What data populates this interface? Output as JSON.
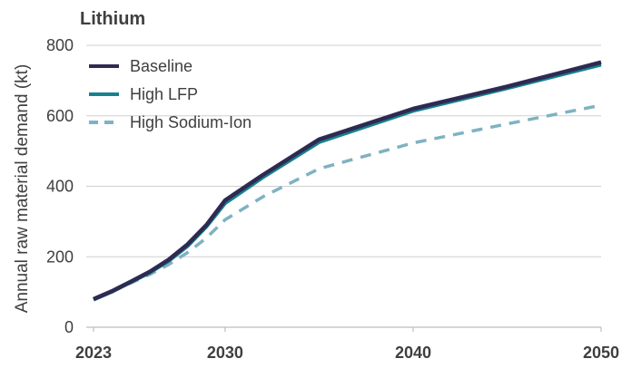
{
  "chart_data": {
    "type": "line",
    "title": "Lithium",
    "xlabel": "",
    "ylabel": "Annual raw material demand (kt)",
    "xlim": [
      2023,
      2050
    ],
    "ylim": [
      0,
      800
    ],
    "x_ticks": [
      "2023",
      "2030",
      "2040",
      "2050"
    ],
    "x_tick_values": [
      2023,
      2030,
      2040,
      2050
    ],
    "y_ticks": [
      "0",
      "200",
      "400",
      "600",
      "800"
    ],
    "y_tick_values": [
      0,
      200,
      400,
      600,
      800
    ],
    "grid": "horizontal",
    "legend_position": "top-left",
    "x": [
      2023,
      2024,
      2025,
      2026,
      2027,
      2028,
      2029,
      2030,
      2032,
      2035,
      2040,
      2045,
      2050
    ],
    "series": [
      {
        "name": "Baseline",
        "color": "#2e2a52",
        "style": "solid",
        "values": [
          80,
          103,
          130,
          158,
          192,
          235,
          290,
          360,
          432,
          533,
          620,
          683,
          752
        ]
      },
      {
        "name": "High LFP",
        "color": "#16828f",
        "style": "solid",
        "values": [
          78,
          101,
          128,
          155,
          188,
          230,
          285,
          352,
          425,
          525,
          614,
          678,
          745
        ]
      },
      {
        "name": "High Sodium-Ion",
        "color": "#7fb2c2",
        "style": "dashed",
        "values": [
          80,
          102,
          126,
          150,
          178,
          212,
          253,
          305,
          370,
          450,
          523,
          577,
          630
        ]
      }
    ]
  }
}
